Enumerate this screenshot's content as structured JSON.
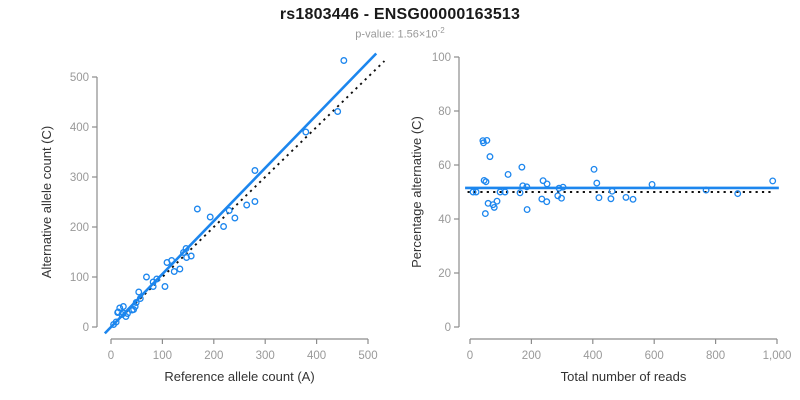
{
  "header": {
    "title": "rs1803446 - ENSG00000163513",
    "pvalue_prefix": "p-value: 1.56×10",
    "pvalue_exponent": "-2"
  },
  "style": {
    "accent_blue": "#1c86ee",
    "dotted_black": "#101010",
    "axis_gray": "#8c8c8c",
    "tick_text_gray": "#999999",
    "label_text_dark": "#333333",
    "background": "#ffffff"
  },
  "chart_data": [
    {
      "type": "scatter",
      "name": "allele-counts-scatter",
      "xlabel": "Reference allele count (A)",
      "ylabel": "Alternative allele count (C)",
      "xlim": [
        0,
        500
      ],
      "ylim": [
        0,
        500
      ],
      "xticks": [
        0,
        100,
        200,
        300,
        400,
        500
      ],
      "xtick_labels": [
        "0",
        "100",
        "200",
        "300",
        "400",
        "500"
      ],
      "yticks": [
        0,
        100,
        200,
        300,
        400,
        500
      ],
      "ytick_labels": [
        "0",
        "100",
        "200",
        "300",
        "400",
        "500"
      ],
      "grid": false,
      "point_style": {
        "shape": "open-circle",
        "radius": 2.8,
        "color": "#1c86ee"
      },
      "points": [
        [
          5,
          5
        ],
        [
          10,
          10
        ],
        [
          29,
          21
        ],
        [
          17,
          38
        ],
        [
          13,
          29
        ],
        [
          14,
          30
        ],
        [
          24,
          41
        ],
        [
          21,
          25
        ],
        [
          24,
          28
        ],
        [
          32,
          27
        ],
        [
          41,
          34
        ],
        [
          44,
          35
        ],
        [
          47,
          41
        ],
        [
          49,
          49
        ],
        [
          57,
          57
        ],
        [
          54,
          70
        ],
        [
          69,
          100
        ],
        [
          82,
          90
        ],
        [
          89,
          96
        ],
        [
          82,
          81
        ],
        [
          105,
          81
        ],
        [
          109,
          129
        ],
        [
          118,
          133
        ],
        [
          123,
          111
        ],
        [
          134,
          116
        ],
        [
          141,
          149
        ],
        [
          146,
          157
        ],
        [
          147,
          139
        ],
        [
          156,
          142
        ],
        [
          168,
          236
        ],
        [
          193,
          220
        ],
        [
          219,
          201
        ],
        [
          241,
          218
        ],
        [
          230,
          233
        ],
        [
          264,
          244
        ],
        [
          280,
          251
        ],
        [
          280,
          313
        ],
        [
          379,
          390
        ],
        [
          441,
          431
        ],
        [
          453,
          533
        ]
      ],
      "lines": [
        {
          "name": "identity-line",
          "slope": 1,
          "intercept": 0,
          "x_start": -6,
          "x_end": 532,
          "style": "dotted",
          "color": "#101010",
          "width": 1.9
        },
        {
          "name": "fit-line",
          "slope": 1.06,
          "intercept": 0,
          "x_start": -12,
          "x_end": 516,
          "style": "solid",
          "color": "#1c86ee",
          "width": 2.6
        }
      ]
    },
    {
      "type": "scatter",
      "name": "percentage-alternative-scatter",
      "xlabel": "Total number of reads",
      "ylabel": "Percentage alternative (C)",
      "xlim": [
        0,
        1000
      ],
      "ylim": [
        0,
        100
      ],
      "xticks": [
        0,
        200,
        400,
        600,
        800,
        1000
      ],
      "xtick_labels": [
        "0",
        "200",
        "400",
        "600",
        "800",
        "1,000"
      ],
      "yticks": [
        0,
        20,
        40,
        60,
        80,
        100
      ],
      "ytick_labels": [
        "0",
        "20",
        "40",
        "60",
        "80",
        "100"
      ],
      "grid": false,
      "point_style": {
        "shape": "open-circle",
        "radius": 2.8,
        "color": "#1c86ee"
      },
      "points": [
        [
          10,
          50.0
        ],
        [
          20,
          50.0
        ],
        [
          50,
          42.0
        ],
        [
          55,
          69.1
        ],
        [
          42,
          69.0
        ],
        [
          44,
          68.2
        ],
        [
          65,
          63.1
        ],
        [
          46,
          54.3
        ],
        [
          52,
          53.8
        ],
        [
          59,
          45.8
        ],
        [
          75,
          45.3
        ],
        [
          79,
          44.3
        ],
        [
          88,
          46.6
        ],
        [
          98,
          50.0
        ],
        [
          114,
          50.0
        ],
        [
          124,
          56.5
        ],
        [
          169,
          59.2
        ],
        [
          172,
          52.3
        ],
        [
          185,
          51.9
        ],
        [
          163,
          49.7
        ],
        [
          186,
          43.5
        ],
        [
          238,
          54.2
        ],
        [
          251,
          53.0
        ],
        [
          234,
          47.4
        ],
        [
          250,
          46.4
        ],
        [
          290,
          51.4
        ],
        [
          303,
          51.8
        ],
        [
          286,
          48.6
        ],
        [
          298,
          47.7
        ],
        [
          404,
          58.4
        ],
        [
          413,
          53.3
        ],
        [
          420,
          47.9
        ],
        [
          459,
          47.5
        ],
        [
          463,
          50.3
        ],
        [
          508,
          48.0
        ],
        [
          531,
          47.3
        ],
        [
          593,
          52.8
        ],
        [
          769,
          50.7
        ],
        [
          872,
          49.4
        ],
        [
          986,
          54.1
        ]
      ],
      "lines": [
        {
          "name": "null-line",
          "slope": 0,
          "intercept": 50,
          "x_start": -8,
          "x_end": 988,
          "style": "dotted",
          "color": "#101010",
          "width": 1.9
        },
        {
          "name": "mean-line",
          "slope": 0,
          "intercept": 51.5,
          "x_start": -16,
          "x_end": 1006,
          "style": "solid",
          "color": "#1c86ee",
          "width": 2.6
        }
      ]
    }
  ]
}
